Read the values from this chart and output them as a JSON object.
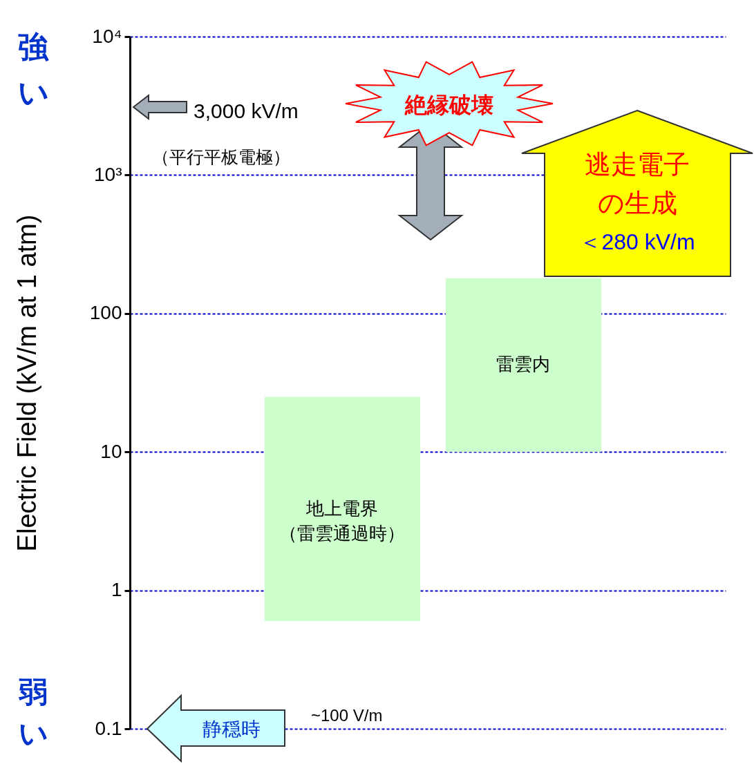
{
  "chart_data": {
    "type": "bar",
    "ylabel": "Electric Field (kV/m at 1 atm)",
    "categories": [
      "地上電界（雷雲通過時）",
      "雷雲内"
    ],
    "base": [
      0.6,
      10
    ],
    "values": [
      24.4,
      170
    ],
    "color": "#ccffcc",
    "log": true,
    "ylim": [
      0.1,
      10000
    ],
    "yticks": [
      0.1,
      1,
      10,
      100,
      {
        "value": 1000,
        "label": "10³"
      },
      {
        "value": 10000,
        "label": "10⁴"
      }
    ],
    "grid": "y",
    "tick_labels": "y",
    "annotations": [
      "強い",
      "弱い",
      "3,000 kV/m",
      "（平行平板電極）",
      "絶縁破壊",
      "逃走電子の生成",
      "＜280 kV/m",
      "静穏時",
      "~100 V/m"
    ]
  }
}
